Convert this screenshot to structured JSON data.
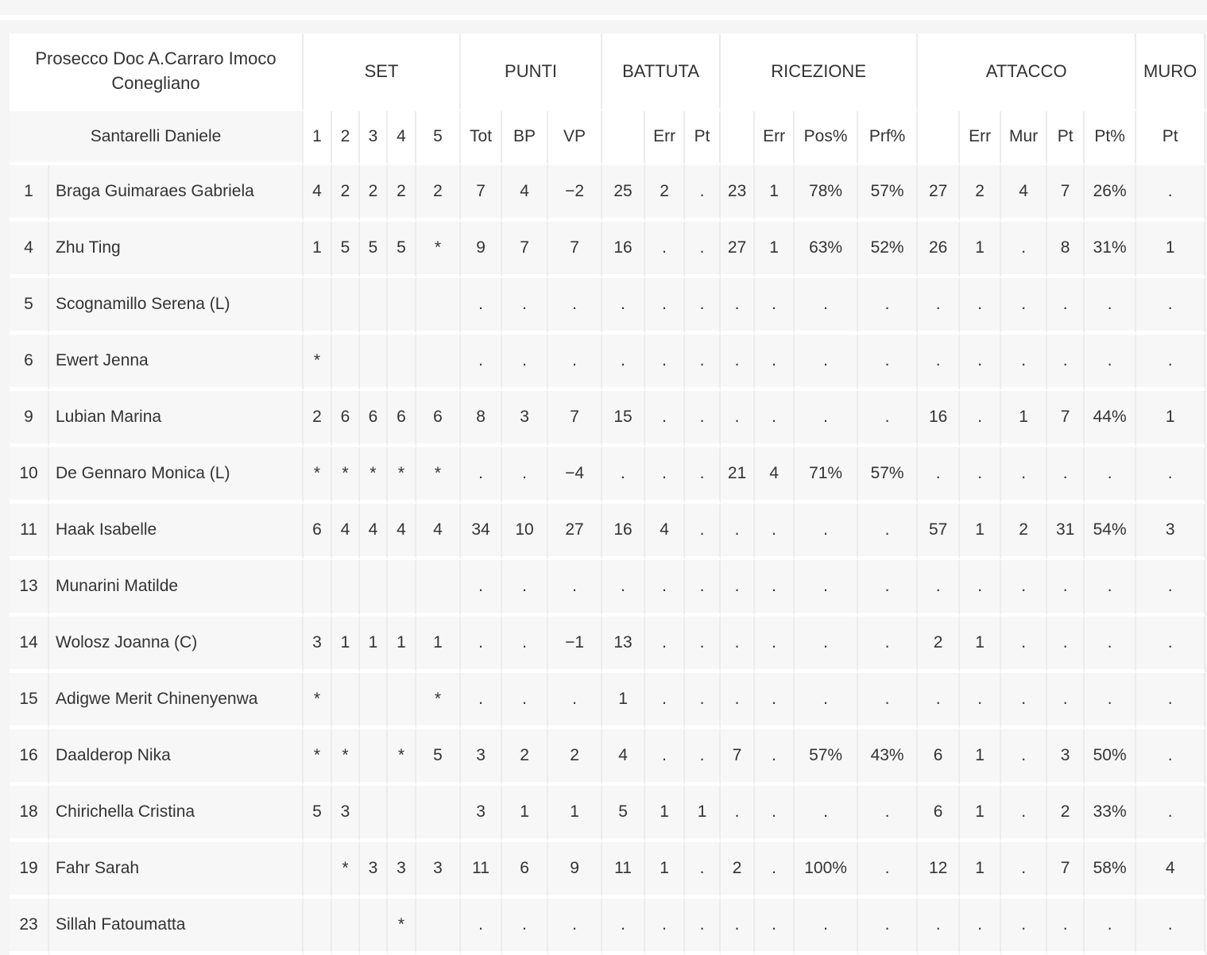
{
  "team": {
    "name": "Prosecco Doc A.Carraro Imoco Conegliano",
    "coach": "Santarelli Daniele"
  },
  "groups": [
    {
      "label": "SET",
      "span": 5
    },
    {
      "label": "PUNTI",
      "span": 3
    },
    {
      "label": "BATTUTA",
      "span": 3
    },
    {
      "label": "RICEZIONE",
      "span": 4
    },
    {
      "label": "ATTACCO",
      "span": 5
    },
    {
      "label": "MURO",
      "span": 1
    }
  ],
  "columns": [
    "1",
    "2",
    "3",
    "4",
    "5",
    "Tot",
    "BP",
    "VP",
    "",
    "Err",
    "Pt",
    "",
    "Err",
    "Pos%",
    "Prf%",
    "",
    "Err",
    "Mur",
    "Pt",
    "Pt%",
    "Pt"
  ],
  "players": [
    {
      "num": "1",
      "name": "Braga Guimaraes Gabriela",
      "stats": [
        "4",
        "2",
        "2",
        "2",
        "2",
        "7",
        "4",
        "−2",
        "25",
        "2",
        ".",
        "23",
        "1",
        "78%",
        "57%",
        "27",
        "2",
        "4",
        "7",
        "26%",
        "."
      ]
    },
    {
      "num": "4",
      "name": "Zhu Ting",
      "stats": [
        "1",
        "5",
        "5",
        "5",
        "*",
        "9",
        "7",
        "7",
        "16",
        ".",
        ".",
        "27",
        "1",
        "63%",
        "52%",
        "26",
        "1",
        ".",
        "8",
        "31%",
        "1"
      ]
    },
    {
      "num": "5",
      "name": "Scognamillo Serena (L)",
      "stats": [
        "",
        "",
        "",
        "",
        "",
        ".",
        ".",
        ".",
        ".",
        ".",
        ".",
        ".",
        ".",
        ".",
        ".",
        ".",
        ".",
        ".",
        ".",
        ".",
        "."
      ]
    },
    {
      "num": "6",
      "name": "Ewert Jenna",
      "stats": [
        "*",
        "",
        "",
        "",
        "",
        ".",
        ".",
        ".",
        ".",
        ".",
        ".",
        ".",
        ".",
        ".",
        ".",
        ".",
        ".",
        ".",
        ".",
        ".",
        "."
      ]
    },
    {
      "num": "9",
      "name": "Lubian Marina",
      "stats": [
        "2",
        "6",
        "6",
        "6",
        "6",
        "8",
        "3",
        "7",
        "15",
        ".",
        ".",
        ".",
        ".",
        ".",
        ".",
        "16",
        ".",
        "1",
        "7",
        "44%",
        "1"
      ]
    },
    {
      "num": "10",
      "name": "De Gennaro Monica (L)",
      "stats": [
        "*",
        "*",
        "*",
        "*",
        "*",
        ".",
        ".",
        "−4",
        ".",
        ".",
        ".",
        "21",
        "4",
        "71%",
        "57%",
        ".",
        ".",
        ".",
        ".",
        ".",
        "."
      ]
    },
    {
      "num": "11",
      "name": "Haak Isabelle",
      "stats": [
        "6",
        "4",
        "4",
        "4",
        "4",
        "34",
        "10",
        "27",
        "16",
        "4",
        ".",
        ".",
        ".",
        ".",
        ".",
        "57",
        "1",
        "2",
        "31",
        "54%",
        "3"
      ]
    },
    {
      "num": "13",
      "name": "Munarini Matilde",
      "stats": [
        "",
        "",
        "",
        "",
        "",
        ".",
        ".",
        ".",
        ".",
        ".",
        ".",
        ".",
        ".",
        ".",
        ".",
        ".",
        ".",
        ".",
        ".",
        ".",
        "."
      ]
    },
    {
      "num": "14",
      "name": "Wolosz Joanna (C)",
      "stats": [
        "3",
        "1",
        "1",
        "1",
        "1",
        ".",
        ".",
        "−1",
        "13",
        ".",
        ".",
        ".",
        ".",
        ".",
        ".",
        "2",
        "1",
        ".",
        ".",
        ".",
        "."
      ]
    },
    {
      "num": "15",
      "name": "Adigwe Merit Chinenyenwa",
      "stats": [
        "*",
        "",
        "",
        "",
        "*",
        ".",
        ".",
        ".",
        "1",
        ".",
        ".",
        ".",
        ".",
        ".",
        ".",
        ".",
        ".",
        ".",
        ".",
        ".",
        "."
      ]
    },
    {
      "num": "16",
      "name": "Daalderop Nika",
      "stats": [
        "*",
        "*",
        "",
        "*",
        "5",
        "3",
        "2",
        "2",
        "4",
        ".",
        ".",
        "7",
        ".",
        "57%",
        "43%",
        "6",
        "1",
        ".",
        "3",
        "50%",
        "."
      ]
    },
    {
      "num": "18",
      "name": "Chirichella Cristina",
      "stats": [
        "5",
        "3",
        "",
        "",
        "",
        "3",
        "1",
        "1",
        "5",
        "1",
        "1",
        ".",
        ".",
        ".",
        ".",
        "6",
        "1",
        ".",
        "2",
        "33%",
        "."
      ]
    },
    {
      "num": "19",
      "name": "Fahr Sarah",
      "stats": [
        "",
        "*",
        "3",
        "3",
        "3",
        "11",
        "6",
        "9",
        "11",
        "1",
        ".",
        "2",
        ".",
        "100%",
        ".",
        "12",
        "1",
        ".",
        "7",
        "58%",
        "4"
      ]
    },
    {
      "num": "23",
      "name": "Sillah Fatoumatta",
      "stats": [
        "",
        "",
        "",
        "*",
        "",
        ".",
        ".",
        ".",
        ".",
        ".",
        ".",
        ".",
        ".",
        ".",
        ".",
        ".",
        ".",
        ".",
        ".",
        ".",
        "."
      ]
    }
  ]
}
